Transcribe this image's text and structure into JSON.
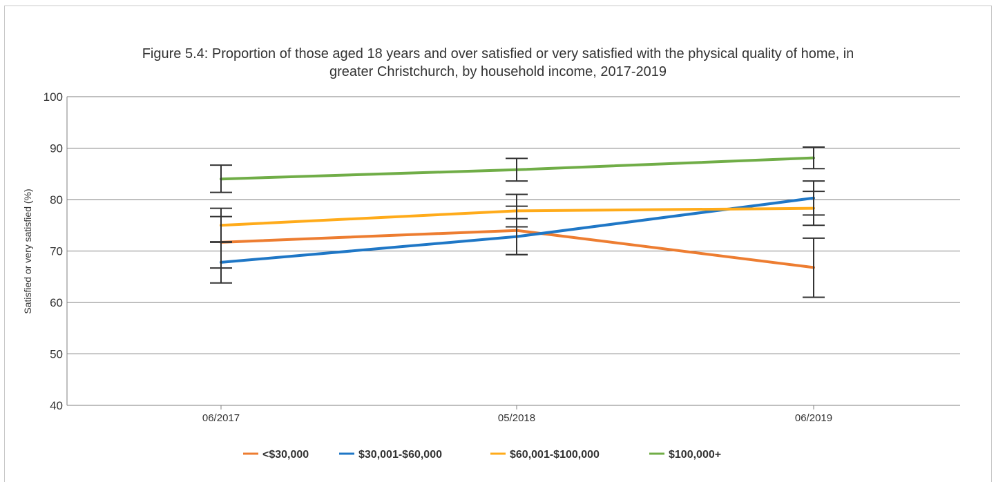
{
  "chart_data": {
    "type": "line",
    "title_line1": "Figure 5.4: Proportion of those aged 18 years and over satisfied or very satisfied with the physical quality of home, in",
    "title_line2": "greater Christchurch, by household income, 2017-2019",
    "ylabel": "Satisfied or very satisfied (%)",
    "xlabel": "",
    "ylim": [
      40,
      100
    ],
    "yticks": [
      40,
      50,
      60,
      70,
      80,
      90,
      100
    ],
    "grid": true,
    "legend_position": "bottom",
    "categories": [
      "06/2017",
      "05/2018",
      "06/2019"
    ],
    "series": [
      {
        "name": "<$30,000",
        "color": "#ed7d31",
        "values": [
          71.7,
          74.0,
          66.8
        ],
        "err_low": [
          66.7,
          69.3,
          61.0
        ],
        "err_high": [
          76.7,
          78.7,
          72.5
        ]
      },
      {
        "name": "$30,001-$60,000",
        "color": "#1f77c6",
        "values": [
          67.8,
          72.8,
          80.3
        ],
        "err_low": [
          63.8,
          69.3,
          77.0
        ],
        "err_high": [
          71.8,
          76.3,
          83.6
        ]
      },
      {
        "name": "$60,001-$100,000",
        "color": "#ffab1a",
        "values": [
          75.0,
          77.8,
          78.3
        ],
        "err_low": [
          71.7,
          74.7,
          75.0
        ],
        "err_high": [
          78.3,
          81.0,
          81.6
        ]
      },
      {
        "name": "$100,000+",
        "color": "#70ad47",
        "values": [
          84.0,
          85.8,
          88.1
        ],
        "err_low": [
          81.4,
          83.6,
          86.0
        ],
        "err_high": [
          86.7,
          88.0,
          90.2
        ]
      }
    ]
  }
}
